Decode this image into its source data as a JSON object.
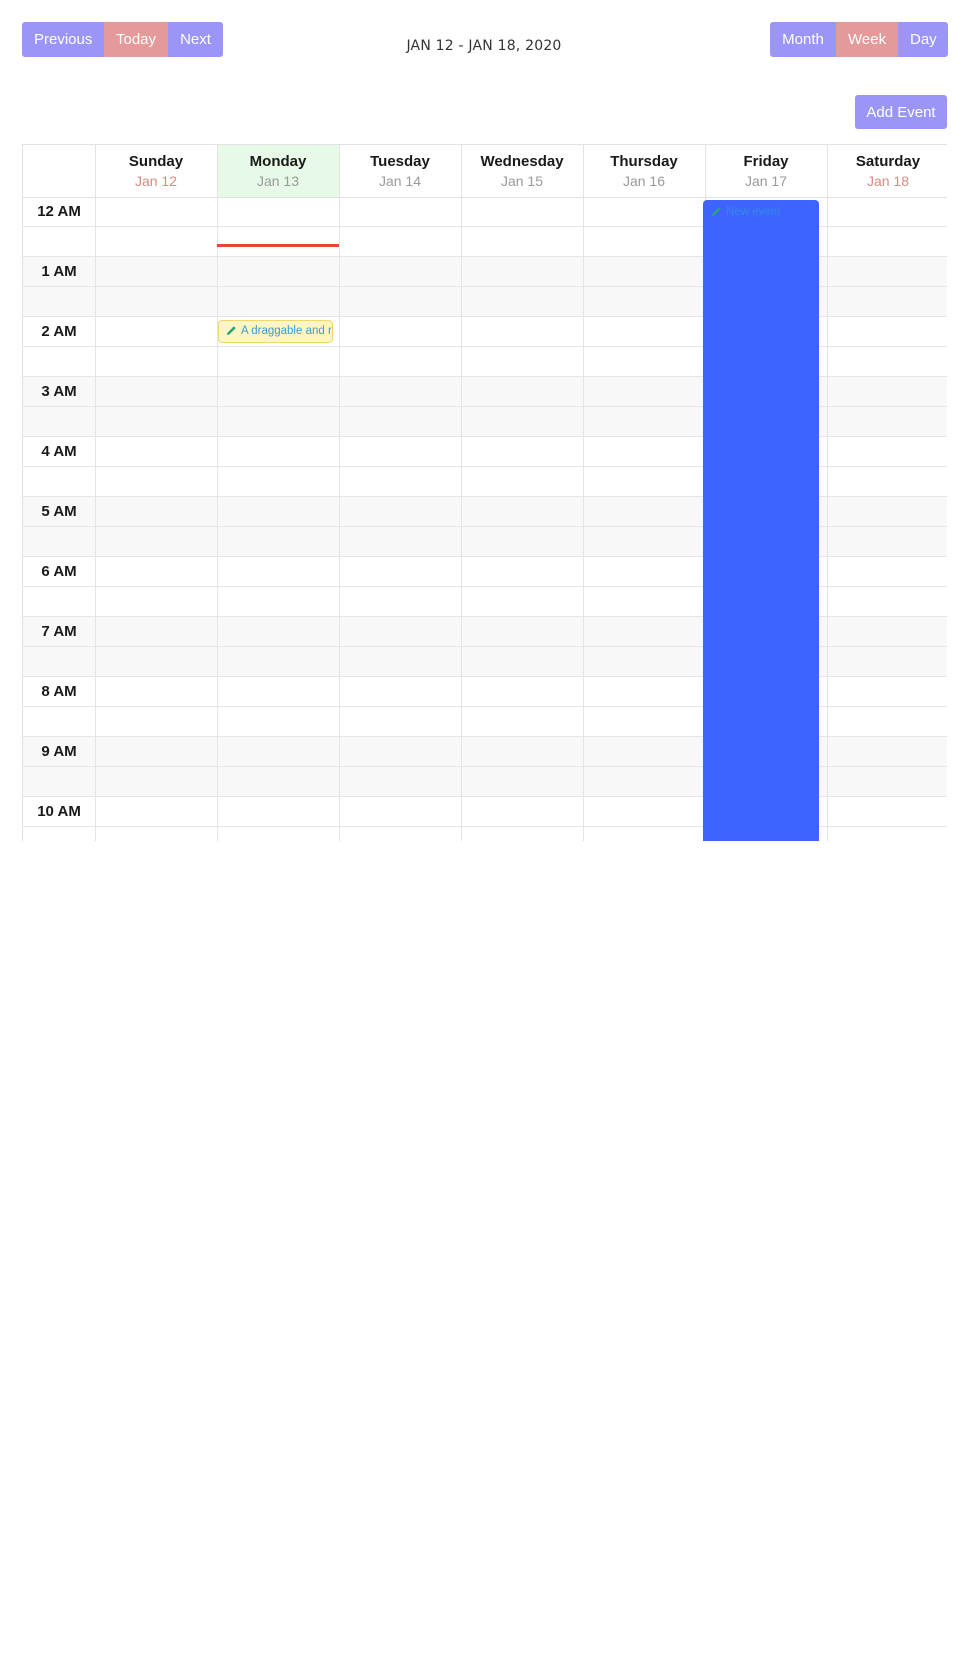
{
  "toolbar": {
    "previous_label": "Previous",
    "today_label": "Today",
    "next_label": "Next",
    "range_title": "JAN 12 - JAN 18, 2020",
    "views": {
      "month": "Month",
      "week": "Week",
      "day": "Day"
    },
    "active_view": "Week",
    "add_event_label": "Add Event"
  },
  "colors": {
    "button": "#9b95f7",
    "button_active": "#e49a9a",
    "today_column": "#e7f9e7",
    "now_indicator": "#e5483a",
    "event_blue": "#3e63ff",
    "event_note": "#fdf5c4"
  },
  "days": [
    {
      "name": "Sunday",
      "date": "Jan 12"
    },
    {
      "name": "Monday",
      "date": "Jan 13"
    },
    {
      "name": "Tuesday",
      "date": "Jan 14"
    },
    {
      "name": "Wednesday",
      "date": "Jan 15"
    },
    {
      "name": "Thursday",
      "date": "Jan 16"
    },
    {
      "name": "Friday",
      "date": "Jan 17"
    },
    {
      "name": "Saturday",
      "date": "Jan 18"
    }
  ],
  "today_index": 1,
  "hours": [
    "12 AM",
    "1 AM",
    "2 AM",
    "3 AM",
    "4 AM",
    "5 AM",
    "6 AM",
    "7 AM",
    "8 AM",
    "9 AM",
    "10 AM"
  ],
  "events": [
    {
      "title": "A draggable and resizable event",
      "day": "Monday",
      "start": "2 AM",
      "icon": "pencil-icon"
    },
    {
      "title": "New event",
      "day": "Friday",
      "start": "12 AM",
      "icon": "pencil-icon"
    }
  ]
}
